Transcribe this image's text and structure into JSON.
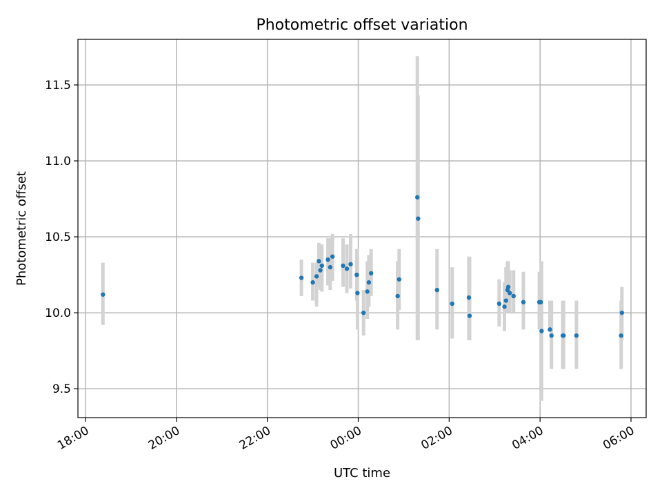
{
  "chart_data": {
    "type": "scatter",
    "title": "Photometric offset variation",
    "xlabel": "UTC time",
    "ylabel": "Photometric offset",
    "xlim": [
      "2000-01-01T17:50",
      "2000-01-02T06:20"
    ],
    "ylim": [
      9.31,
      11.8
    ],
    "x_ticks": [
      "18:00",
      "20:00",
      "22:00",
      "00:00",
      "02:00",
      "04:00",
      "06:00"
    ],
    "y_ticks": [
      "9.5",
      "10.0",
      "10.5",
      "11.0",
      "11.5"
    ],
    "grid": true,
    "marker_color": "#1f77b4",
    "errorbar_color": "#d3d3d3",
    "x": [
      "18:23",
      "22:45",
      "23:00",
      "23:05",
      "23:08",
      "23:10",
      "23:12",
      "23:20",
      "23:23",
      "23:26",
      "23:40",
      "23:45",
      "23:50",
      "23:58",
      "23:59",
      "00:07",
      "00:12",
      "00:14",
      "00:17",
      "00:52",
      "00:54",
      "01:18",
      "01:19",
      "01:44",
      "02:04",
      "02:26",
      "02:27",
      "03:06",
      "03:13",
      "03:15",
      "03:17",
      "03:18",
      "03:20",
      "03:25",
      "03:38",
      "03:59",
      "04:01",
      "04:02",
      "04:13",
      "04:15",
      "04:30",
      "04:31",
      "04:48",
      "05:47",
      "05:48"
    ],
    "y": [
      10.12,
      10.23,
      10.2,
      10.24,
      10.34,
      10.28,
      10.31,
      10.35,
      10.3,
      10.37,
      10.31,
      10.29,
      10.32,
      10.25,
      10.13,
      10.0,
      10.14,
      10.2,
      10.26,
      10.11,
      10.22,
      10.76,
      10.62,
      10.15,
      10.06,
      10.1,
      9.98,
      10.06,
      10.04,
      10.08,
      10.15,
      10.17,
      10.13,
      10.11,
      10.07,
      10.07,
      10.07,
      9.88,
      9.89,
      9.85,
      9.85,
      9.85,
      9.85,
      9.85,
      10.0
    ],
    "err_low": [
      9.92,
      10.11,
      10.08,
      10.04,
      10.17,
      10.15,
      10.14,
      10.18,
      10.15,
      10.21,
      10.17,
      10.13,
      10.16,
      10.08,
      9.89,
      9.85,
      9.96,
      10.04,
      10.11,
      9.89,
      10.02,
      9.82,
      9.82,
      9.89,
      9.83,
      9.82,
      9.82,
      9.91,
      9.88,
      10.0,
      10.0,
      10.0,
      10.0,
      10.0,
      9.89,
      9.89,
      9.89,
      9.42,
      9.88,
      9.63,
      9.63,
      9.63,
      9.63,
      9.63,
      9.82
    ],
    "err_high": [
      10.33,
      10.35,
      10.33,
      10.33,
      10.46,
      10.45,
      10.45,
      10.49,
      10.49,
      10.52,
      10.49,
      10.45,
      10.52,
      10.42,
      10.38,
      10.15,
      10.34,
      10.38,
      10.42,
      10.34,
      10.42,
      11.69,
      11.43,
      10.42,
      10.3,
      10.37,
      10.37,
      10.22,
      10.2,
      10.3,
      10.34,
      10.34,
      10.28,
      10.28,
      10.27,
      10.27,
      10.27,
      10.34,
      10.08,
      10.08,
      10.08,
      10.08,
      10.08,
      10.08,
      10.17
    ]
  }
}
